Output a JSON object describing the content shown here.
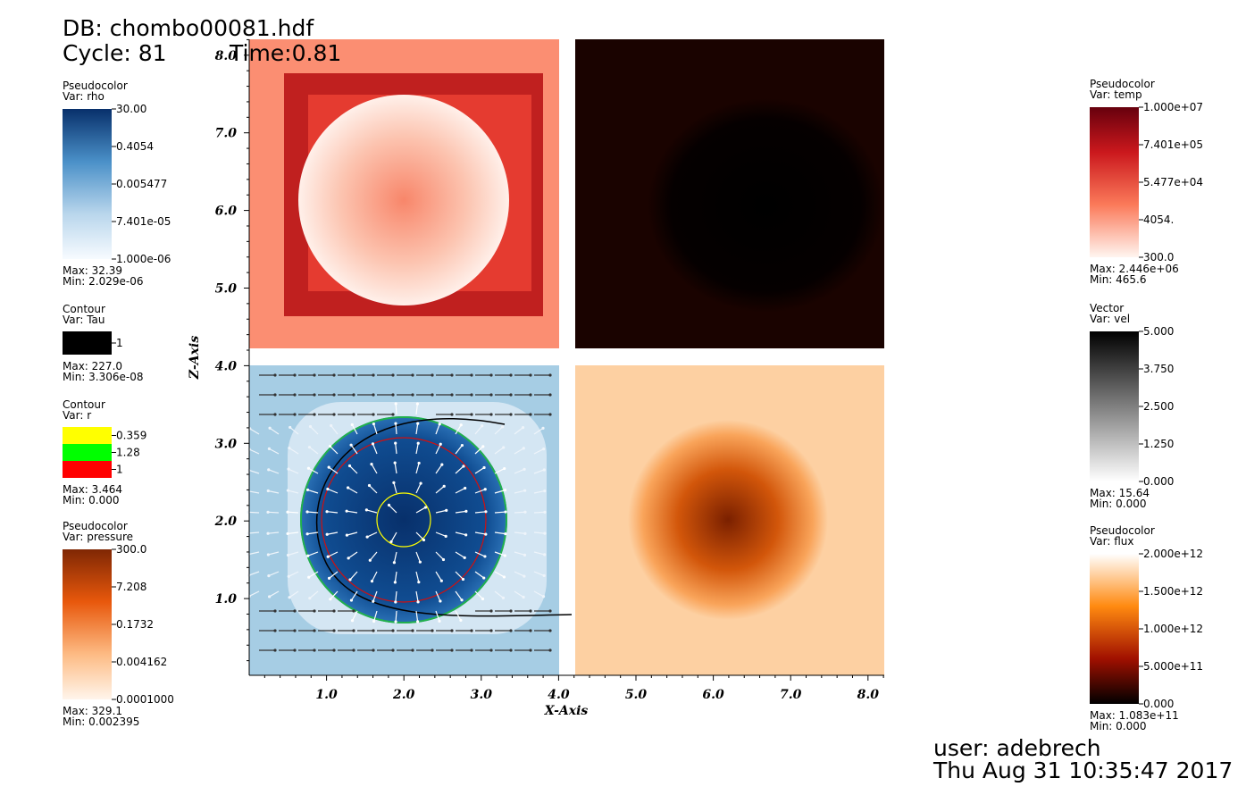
{
  "header": {
    "db": "DB: chombo00081.hdf",
    "cycle": "Cycle: 81",
    "time": "Time:0.81"
  },
  "legends_left": [
    {
      "plot": "Pseudocolor",
      "var": "Var: rho",
      "labels": [
        "30.00",
        "0.4054",
        "0.005477",
        "7.401e-05",
        "1.000e-06"
      ],
      "max": "Max:  32.39",
      "min": "Min:  2.029e-06"
    },
    {
      "plot": "Contour",
      "var": "Var: Tau",
      "labels": [
        "1"
      ],
      "max": "Max:  227.0",
      "min": "Min:  3.306e-08"
    },
    {
      "plot": "Contour",
      "var": "Var: r",
      "labels": [
        "0.359",
        "1.28",
        "1"
      ],
      "max": "Max:  3.464",
      "min": "Min:  0.000"
    },
    {
      "plot": "Pseudocolor",
      "var": "Var: pressure",
      "labels": [
        "300.0",
        "7.208",
        "0.1732",
        "0.004162",
        "0.0001000"
      ],
      "max": "Max:  329.1",
      "min": "Min:  0.002395"
    }
  ],
  "legends_right": [
    {
      "plot": "Pseudocolor",
      "var": "Var: temp",
      "labels": [
        "1.000e+07",
        "7.401e+05",
        "5.477e+04",
        "4054.",
        "300.0"
      ],
      "max": "Max:  2.446e+06",
      "min": "Min:  465.6"
    },
    {
      "plot": "Vector",
      "var": "Var: vel",
      "labels": [
        "5.000",
        "3.750",
        "2.500",
        "1.250",
        "0.000"
      ],
      "max": "Max:  15.64",
      "min": "Min:  0.000"
    },
    {
      "plot": "Pseudocolor",
      "var": "Var: flux",
      "labels": [
        "2.000e+12",
        "1.500e+12",
        "1.000e+12",
        "5.000e+11",
        "0.000"
      ],
      "max": "Max:  1.083e+11",
      "min": "Min:  0.000"
    }
  ],
  "axes": {
    "x_label": "X-Axis",
    "z_label": "Z-Axis",
    "x_ticks": [
      "1.0",
      "2.0",
      "3.0",
      "4.0",
      "5.0",
      "6.0",
      "7.0",
      "8.0"
    ],
    "z_ticks": [
      "1.0",
      "2.0",
      "3.0",
      "4.0",
      "5.0",
      "6.0",
      "7.0",
      "8.0"
    ]
  },
  "footer": {
    "user": "user: adebrech",
    "date": "Thu Aug 31 10:35:47 2017"
  }
}
